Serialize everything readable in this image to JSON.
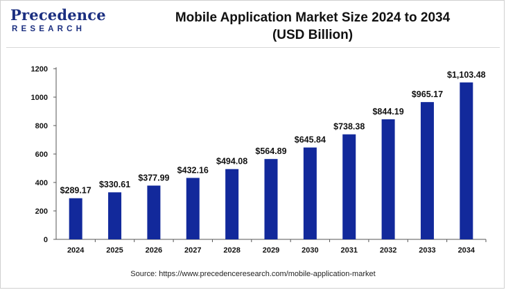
{
  "brand": {
    "name": "Precedence",
    "sub": "RESEARCH"
  },
  "header": {
    "title_line1": "Mobile Application Market Size 2024 to 2034",
    "title_line2": "(USD Billion)"
  },
  "source": "Source: https://www.precedenceresearch.com/mobile-application-market",
  "colors": {
    "bar": "#12299b",
    "brand": "#1b2f80",
    "axis": "#555555",
    "text": "#111111"
  },
  "chart_data": {
    "type": "bar",
    "categories": [
      "2024",
      "2025",
      "2026",
      "2027",
      "2028",
      "2029",
      "2030",
      "2031",
      "2032",
      "2033",
      "2034"
    ],
    "values": [
      289.17,
      330.61,
      377.99,
      432.16,
      494.08,
      564.89,
      645.84,
      738.38,
      844.19,
      965.17,
      1103.48
    ],
    "data_labels": [
      "$289.17",
      "$330.61",
      "$377.99",
      "$432.16",
      "$494.08",
      "$564.89",
      "$645.84",
      "$738.38",
      "$844.19",
      "$965.17",
      "$1,103.48"
    ],
    "title": "Mobile Application Market Size 2024 to 2034 (USD Billion)",
    "xlabel": "",
    "ylabel": "",
    "ylim": [
      0,
      1200
    ],
    "yticks": [
      0,
      200,
      400,
      600,
      800,
      1000,
      1200
    ],
    "grid": false,
    "legend": "none"
  }
}
